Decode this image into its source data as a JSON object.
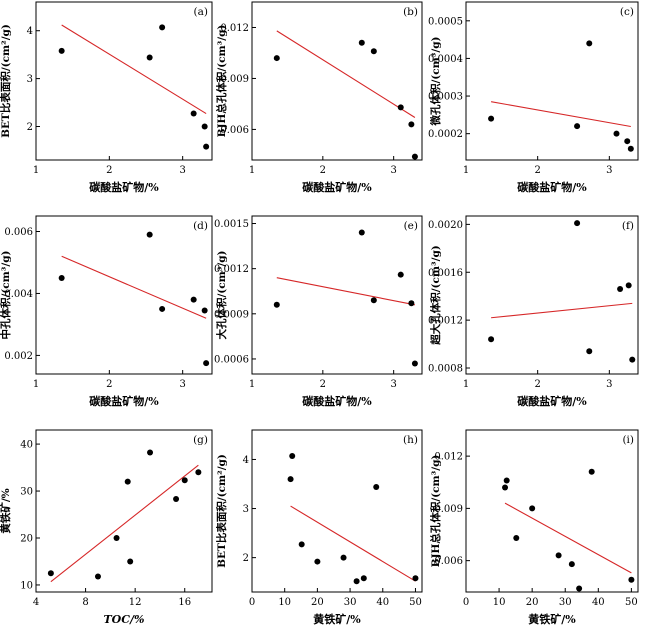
{
  "chart_data": [
    {
      "type": "scatter",
      "panel_label": "(a)",
      "xlabel": "碳酸盐矿物/%",
      "ylabel": "BET比表面积/(cm²/g)",
      "xlim": [
        1,
        3.4
      ],
      "ylim": [
        1.3,
        4.6
      ],
      "xticks": [
        "1",
        "2",
        "3"
      ],
      "yticks": [
        "2",
        "3",
        "4"
      ],
      "points": [
        [
          1.35,
          3.58
        ],
        [
          2.55,
          3.44
        ],
        [
          2.72,
          4.07
        ],
        [
          3.15,
          2.27
        ],
        [
          3.3,
          2.0
        ],
        [
          3.32,
          1.58
        ]
      ],
      "fit": [
        [
          1.35,
          4.12
        ],
        [
          3.32,
          2.27
        ]
      ]
    },
    {
      "type": "scatter",
      "panel_label": "(b)",
      "xlabel": "碳酸盐矿物/%",
      "ylabel": "BJH总孔体积/(cm³/g)",
      "xlim": [
        1,
        3.4
      ],
      "ylim": [
        0.0042,
        0.0135
      ],
      "xticks": [
        "1",
        "2",
        "3"
      ],
      "yticks": [
        "0.006",
        "0.009",
        "0.012"
      ],
      "points": [
        [
          1.35,
          0.0102
        ],
        [
          2.55,
          0.0111
        ],
        [
          2.72,
          0.0106
        ],
        [
          3.1,
          0.0073
        ],
        [
          3.25,
          0.0063
        ],
        [
          3.3,
          0.0044
        ]
      ],
      "fit": [
        [
          1.35,
          0.0118
        ],
        [
          3.3,
          0.0067
        ]
      ]
    },
    {
      "type": "scatter",
      "panel_label": "(c)",
      "xlabel": "碳酸盐矿物/%",
      "ylabel": "微孔体积/(cm³/g)",
      "xlim": [
        1,
        3.4
      ],
      "ylim": [
        0.00013,
        0.00055
      ],
      "xticks": [
        "1",
        "2",
        "3"
      ],
      "yticks": [
        "0.0002",
        "0.0003",
        "0.0004",
        "0.0005"
      ],
      "points": [
        [
          1.35,
          0.00024
        ],
        [
          2.55,
          0.00022
        ],
        [
          2.72,
          0.00044
        ],
        [
          3.1,
          0.0002
        ],
        [
          3.25,
          0.00018
        ],
        [
          3.3,
          0.00016
        ]
      ],
      "fit": [
        [
          1.35,
          0.000285
        ],
        [
          3.3,
          0.000219
        ]
      ]
    },
    {
      "type": "scatter",
      "panel_label": "(d)",
      "xlabel": "碳酸盐矿物/%",
      "ylabel": "中孔体积/(cm³/g)",
      "xlim": [
        1,
        3.4
      ],
      "ylim": [
        0.0014,
        0.0065
      ],
      "xticks": [
        "1",
        "2",
        "3"
      ],
      "yticks": [
        "0.002",
        "0.004",
        "0.006"
      ],
      "points": [
        [
          1.35,
          0.0045
        ],
        [
          2.55,
          0.0059
        ],
        [
          2.72,
          0.0035
        ],
        [
          3.15,
          0.0038
        ],
        [
          3.3,
          0.00345
        ],
        [
          3.32,
          0.00175
        ]
      ],
      "fit": [
        [
          1.35,
          0.0052
        ],
        [
          3.32,
          0.0032
        ]
      ]
    },
    {
      "type": "scatter",
      "panel_label": "(e)",
      "xlabel": "碳酸盐矿物/%",
      "ylabel": "大孔体积/(cm³/g)",
      "xlim": [
        1,
        3.4
      ],
      "ylim": [
        0.0005,
        0.00155
      ],
      "xticks": [
        "1",
        "2",
        "3"
      ],
      "yticks": [
        "0.0006",
        "0.0009",
        "0.0012",
        "0.0015"
      ],
      "points": [
        [
          1.35,
          0.00096
        ],
        [
          2.55,
          0.00144
        ],
        [
          2.72,
          0.00099
        ],
        [
          3.1,
          0.00116
        ],
        [
          3.25,
          0.00097
        ],
        [
          3.3,
          0.00057
        ]
      ],
      "fit": [
        [
          1.35,
          0.00114
        ],
        [
          3.3,
          0.00096
        ]
      ]
    },
    {
      "type": "scatter",
      "panel_label": "(f)",
      "xlabel": "碳酸盐矿物/%",
      "ylabel": "超大孔体积/(cm³/g)",
      "xlim": [
        1,
        3.4
      ],
      "ylim": [
        0.00075,
        0.00207
      ],
      "xticks": [
        "1",
        "2",
        "3"
      ],
      "yticks": [
        "0.0008",
        "0.0012",
        "0.0016",
        "0.0020"
      ],
      "points": [
        [
          1.35,
          0.00104
        ],
        [
          2.55,
          0.00201
        ],
        [
          2.72,
          0.00094
        ],
        [
          3.15,
          0.00146
        ],
        [
          3.27,
          0.00149
        ],
        [
          3.32,
          0.00087
        ]
      ],
      "fit": [
        [
          1.35,
          0.00122
        ],
        [
          3.32,
          0.00134
        ]
      ]
    },
    {
      "type": "scatter",
      "panel_label": "(g)",
      "xlabel": "TOC/%",
      "ylabel": "黄铁矿/%",
      "xlim": [
        4,
        18.2
      ],
      "ylim": [
        8.5,
        43
      ],
      "xticks": [
        "4",
        "8",
        "12",
        "16"
      ],
      "yticks": [
        "10",
        "20",
        "30",
        "40"
      ],
      "points": [
        [
          5.2,
          12.5
        ],
        [
          9,
          11.8
        ],
        [
          10.5,
          20
        ],
        [
          11.4,
          32
        ],
        [
          11.6,
          15
        ],
        [
          13.2,
          38.2
        ],
        [
          15.3,
          28.3
        ],
        [
          16,
          32.3
        ],
        [
          17.1,
          34
        ]
      ],
      "fit": [
        [
          5.2,
          10.7
        ],
        [
          17.1,
          35.5
        ]
      ]
    },
    {
      "type": "scatter",
      "panel_label": "(h)",
      "xlabel": "黄铁矿/%",
      "ylabel": "BET比表面积/(cm²/g)",
      "xlim": [
        0,
        52
      ],
      "ylim": [
        1.3,
        4.6
      ],
      "xticks": [
        "0",
        "10",
        "20",
        "30",
        "40",
        "50"
      ],
      "yticks": [
        "2",
        "3",
        "4"
      ],
      "points": [
        [
          11.8,
          3.6
        ],
        [
          12.3,
          4.07
        ],
        [
          15.2,
          2.27
        ],
        [
          20,
          1.92
        ],
        [
          28,
          2.0
        ],
        [
          32,
          1.52
        ],
        [
          34.2,
          1.58
        ],
        [
          38,
          3.44
        ],
        [
          50,
          1.58
        ]
      ],
      "fit": [
        [
          11.8,
          3.05
        ],
        [
          50,
          1.52
        ]
      ]
    },
    {
      "type": "scatter",
      "panel_label": "(i)",
      "xlabel": "黄铁矿/%",
      "ylabel": "BJH总孔体积/(cm³/g)",
      "xlim": [
        0,
        52
      ],
      "ylim": [
        0.0042,
        0.0135
      ],
      "xticks": [
        "0",
        "10",
        "20",
        "30",
        "40",
        "50"
      ],
      "yticks": [
        "0.006",
        "0.009",
        "0.012"
      ],
      "points": [
        [
          11.8,
          0.0102
        ],
        [
          12.3,
          0.0106
        ],
        [
          15.2,
          0.0073
        ],
        [
          20,
          0.009
        ],
        [
          28,
          0.0063
        ],
        [
          32,
          0.0058
        ],
        [
          34.2,
          0.0044
        ],
        [
          38,
          0.0111
        ],
        [
          50,
          0.0049
        ]
      ],
      "fit": [
        [
          11.8,
          0.0093
        ],
        [
          50,
          0.0053
        ]
      ]
    }
  ],
  "colors": {
    "points": "#000000",
    "fit_line": "#d62728",
    "axes": "#000000"
  }
}
